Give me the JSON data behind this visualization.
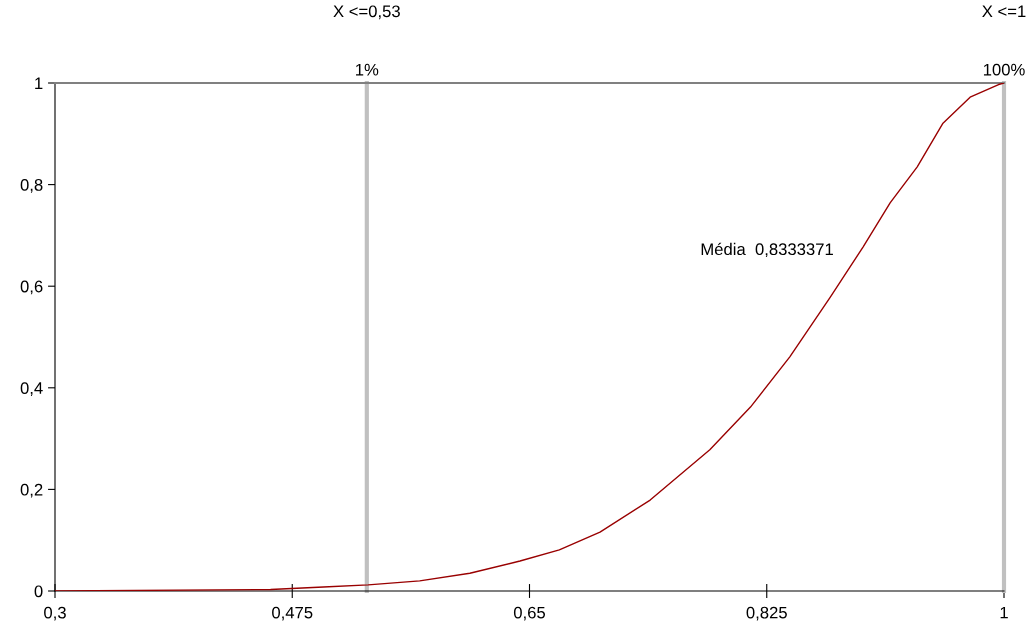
{
  "chart_data": {
    "type": "line",
    "x": [
      0.3,
      0.459,
      0.498,
      0.531,
      0.569,
      0.606,
      0.643,
      0.672,
      0.702,
      0.739,
      0.783,
      0.813,
      0.842,
      0.872,
      0.896,
      0.916,
      0.936,
      0.955,
      0.975,
      0.996,
      1.0
    ],
    "values": [
      0,
      0.003,
      0.008,
      0.012,
      0.02,
      0.035,
      0.059,
      0.081,
      0.116,
      0.179,
      0.278,
      0.362,
      0.461,
      0.579,
      0.677,
      0.764,
      0.835,
      0.921,
      0.972,
      0.997,
      1.0
    ],
    "color": "#990000",
    "xlim": [
      0.3,
      1
    ],
    "ylim": [
      0,
      1
    ],
    "xticks": [
      {
        "value": 0.3,
        "label": "0,3"
      },
      {
        "value": 0.475,
        "label": "0,475"
      },
      {
        "value": 0.65,
        "label": "0,65"
      },
      {
        "value": 0.825,
        "label": "0,825"
      },
      1
    ],
    "yticks": [
      0,
      {
        "value": 0.2,
        "label": "0,2"
      },
      {
        "value": 0.4,
        "label": "0,4"
      },
      {
        "value": 0.6,
        "label": "0,6"
      },
      {
        "value": 0.8,
        "label": "0,8"
      },
      1
    ],
    "ref_lines": [
      {
        "axis": "x",
        "value": 0.53,
        "label": "1%",
        "color": "#c0c0c0"
      },
      {
        "axis": "x",
        "value": 1,
        "label": "100%",
        "color": "#c0c0c0"
      }
    ],
    "annotations": [
      "X <=0,53",
      "X <=1",
      "Média  0,8333371"
    ],
    "grid": false,
    "legend": false
  }
}
